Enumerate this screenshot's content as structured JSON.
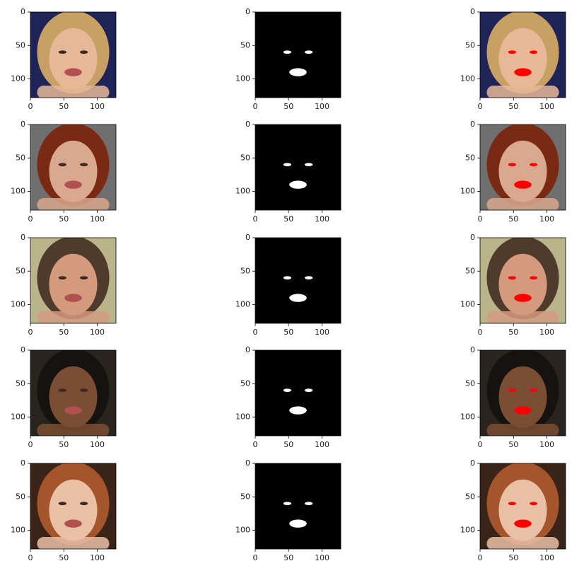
{
  "chart_data": [
    {
      "type": "image",
      "xlim": [
        0,
        128
      ],
      "ylim": [
        128,
        0
      ],
      "xticks": [
        0,
        50,
        100
      ],
      "yticks": [
        0,
        50,
        100
      ]
    },
    {
      "type": "image",
      "xlim": [
        0,
        128
      ],
      "ylim": [
        128,
        0
      ],
      "xticks": [
        0,
        50,
        100
      ],
      "yticks": [
        0,
        50,
        100
      ]
    },
    {
      "type": "image",
      "xlim": [
        0,
        128
      ],
      "ylim": [
        128,
        0
      ],
      "xticks": [
        0,
        50,
        100
      ],
      "yticks": [
        0,
        50,
        100
      ]
    },
    {
      "type": "image",
      "xlim": [
        0,
        128
      ],
      "ylim": [
        128,
        0
      ],
      "xticks": [
        0,
        50,
        100
      ],
      "yticks": [
        0,
        50,
        100
      ]
    },
    {
      "type": "image",
      "xlim": [
        0,
        128
      ],
      "ylim": [
        128,
        0
      ],
      "xticks": [
        0,
        50,
        100
      ],
      "yticks": [
        0,
        50,
        100
      ]
    },
    {
      "type": "image",
      "xlim": [
        0,
        128
      ],
      "ylim": [
        128,
        0
      ],
      "xticks": [
        0,
        50,
        100
      ],
      "yticks": [
        0,
        50,
        100
      ]
    },
    {
      "type": "image",
      "xlim": [
        0,
        128
      ],
      "ylim": [
        128,
        0
      ],
      "xticks": [
        0,
        50,
        100
      ],
      "yticks": [
        0,
        50,
        100
      ]
    },
    {
      "type": "image",
      "xlim": [
        0,
        128
      ],
      "ylim": [
        128,
        0
      ],
      "xticks": [
        0,
        50,
        100
      ],
      "yticks": [
        0,
        50,
        100
      ]
    },
    {
      "type": "image",
      "xlim": [
        0,
        128
      ],
      "ylim": [
        128,
        0
      ],
      "xticks": [
        0,
        50,
        100
      ],
      "yticks": [
        0,
        50,
        100
      ]
    },
    {
      "type": "image",
      "xlim": [
        0,
        128
      ],
      "ylim": [
        128,
        0
      ],
      "xticks": [
        0,
        50,
        100
      ],
      "yticks": [
        0,
        50,
        100
      ]
    },
    {
      "type": "image",
      "xlim": [
        0,
        128
      ],
      "ylim": [
        128,
        0
      ],
      "xticks": [
        0,
        50,
        100
      ],
      "yticks": [
        0,
        50,
        100
      ]
    },
    {
      "type": "image",
      "xlim": [
        0,
        128
      ],
      "ylim": [
        128,
        0
      ],
      "xticks": [
        0,
        50,
        100
      ],
      "yticks": [
        0,
        50,
        100
      ]
    },
    {
      "type": "image",
      "xlim": [
        0,
        128
      ],
      "ylim": [
        128,
        0
      ],
      "xticks": [
        0,
        50,
        100
      ],
      "yticks": [
        0,
        50,
        100
      ]
    },
    {
      "type": "image",
      "xlim": [
        0,
        128
      ],
      "ylim": [
        128,
        0
      ],
      "xticks": [
        0,
        50,
        100
      ],
      "yticks": [
        0,
        50,
        100
      ]
    },
    {
      "type": "image",
      "xlim": [
        0,
        128
      ],
      "ylim": [
        128,
        0
      ],
      "xticks": [
        0,
        50,
        100
      ],
      "yticks": [
        0,
        50,
        100
      ]
    }
  ]
}
